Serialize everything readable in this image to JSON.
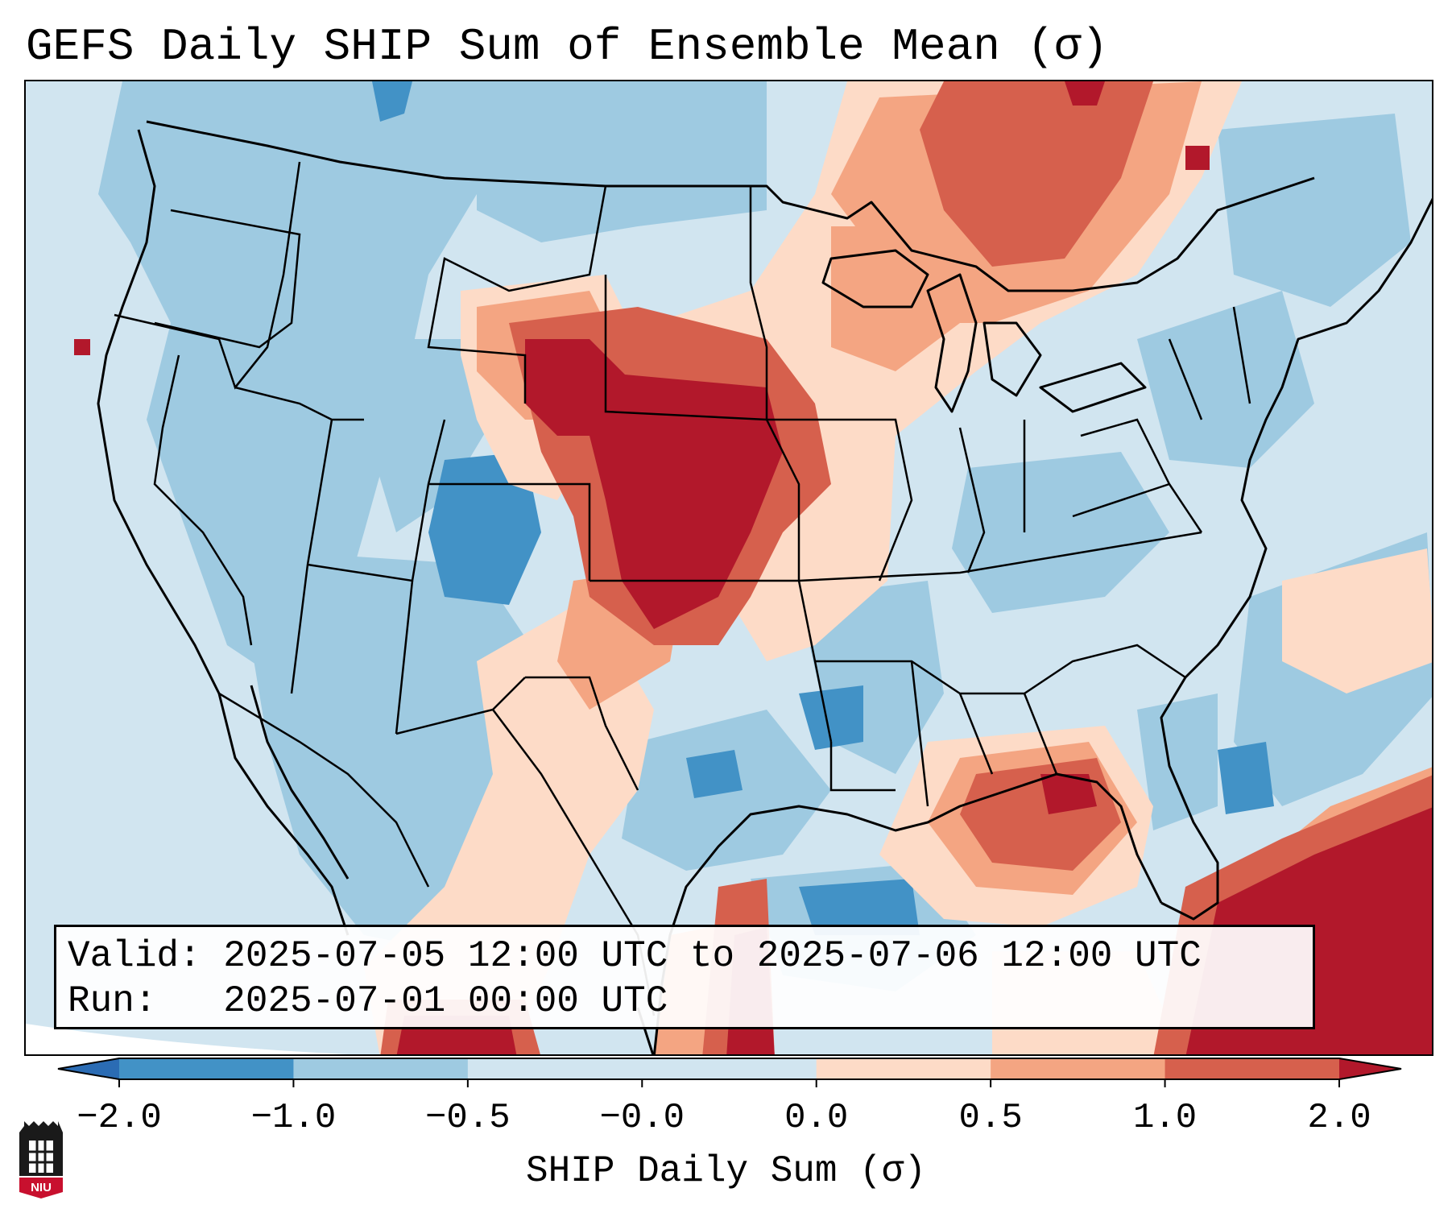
{
  "title": "GEFS Daily SHIP Sum of Ensemble Mean (σ)",
  "info": {
    "valid_line": "Valid: 2025-07-05 12:00 UTC to 2025-07-06 12:00 UTC",
    "run_line": "Run:   2025-07-01 00:00 UTC"
  },
  "colorbar": {
    "label": "SHIP Daily Sum (σ)",
    "ticks": [
      "−2.0",
      "−1.0",
      "−0.5",
      "−0.0",
      "0.0",
      "0.5",
      "1.0",
      "2.0"
    ],
    "colors": [
      "#2b6cb4",
      "#4292c6",
      "#9ecae1",
      "#d1e5f0",
      "#fddbc7",
      "#f4a582",
      "#d6604d",
      "#b2182b"
    ]
  },
  "logo": {
    "text": "NIU"
  }
}
